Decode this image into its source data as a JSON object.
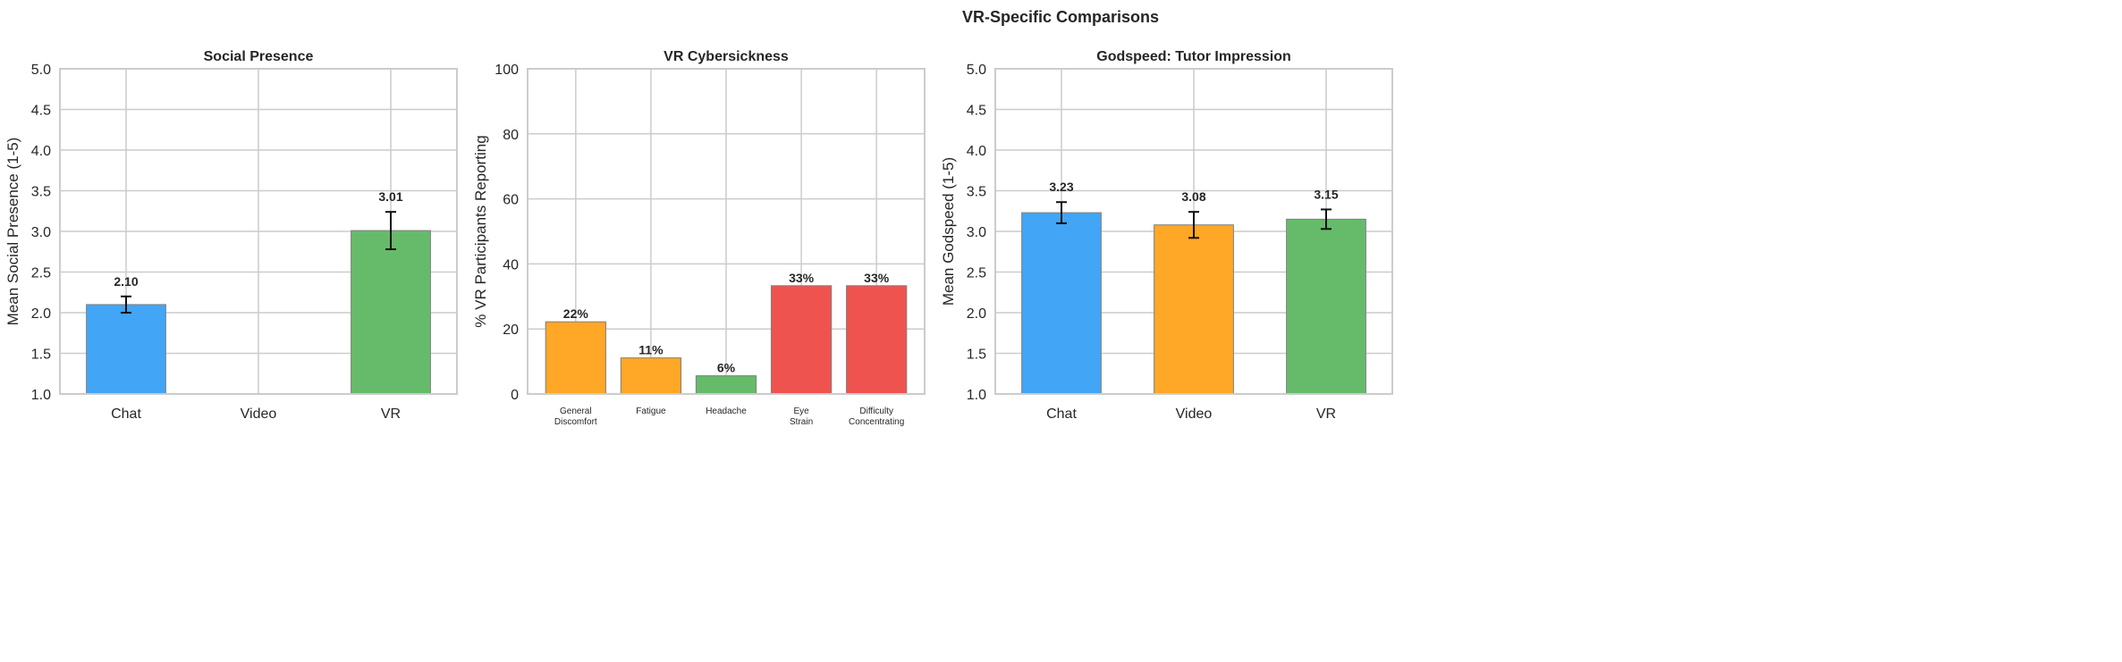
{
  "suptitle": "VR-Specific Comparisons",
  "colors": {
    "blue": "#42A5F5",
    "orange": "#FFA726",
    "green": "#66BB6A",
    "red": "#EF5350",
    "grid": "#cccccc",
    "edge": "#808080"
  },
  "chart_data": [
    {
      "type": "bar",
      "title": "Social Presence",
      "ylabel": "Mean Social Presence (1-5)",
      "xlabel": "",
      "categories": [
        "Chat",
        "Video",
        "VR"
      ],
      "values": [
        2.1,
        null,
        3.01
      ],
      "errors": [
        0.1,
        null,
        0.23
      ],
      "value_labels": [
        "2.10",
        "",
        "3.01"
      ],
      "bar_colors": [
        "#42A5F5",
        "#FFA726",
        "#66BB6A"
      ],
      "ylim": [
        1.0,
        5.0
      ],
      "yticks": [
        "1.0",
        "1.5",
        "2.0",
        "2.5",
        "3.0",
        "3.5",
        "4.0",
        "4.5",
        "5.0"
      ],
      "grid": true
    },
    {
      "type": "bar",
      "title": "VR Cybersickness",
      "ylabel": "% VR Participants Reporting",
      "xlabel": "",
      "categories": [
        [
          "General",
          "Discomfort"
        ],
        [
          "Fatigue"
        ],
        [
          "Headache"
        ],
        [
          "Eye",
          "Strain"
        ],
        [
          "Difficulty",
          "Concentrating"
        ]
      ],
      "values": [
        22.2,
        11.1,
        5.6,
        33.3,
        33.3
      ],
      "value_labels": [
        "22%",
        "11%",
        "6%",
        "33%",
        "33%"
      ],
      "bar_colors": [
        "#FFA726",
        "#FFA726",
        "#66BB6A",
        "#EF5350",
        "#EF5350"
      ],
      "ylim": [
        0,
        100
      ],
      "yticks": [
        "0",
        "20",
        "40",
        "60",
        "80",
        "100"
      ],
      "grid": true
    },
    {
      "type": "bar",
      "title": "Godspeed: Tutor Impression",
      "ylabel": "Mean Godspeed (1-5)",
      "xlabel": "",
      "categories": [
        "Chat",
        "Video",
        "VR"
      ],
      "values": [
        3.23,
        3.08,
        3.15
      ],
      "errors": [
        0.13,
        0.16,
        0.12
      ],
      "value_labels": [
        "3.23",
        "3.08",
        "3.15"
      ],
      "bar_colors": [
        "#42A5F5",
        "#FFA726",
        "#66BB6A"
      ],
      "ylim": [
        1.0,
        5.0
      ],
      "yticks": [
        "1.0",
        "1.5",
        "2.0",
        "2.5",
        "3.0",
        "3.5",
        "4.0",
        "4.5",
        "5.0"
      ],
      "grid": true
    }
  ]
}
